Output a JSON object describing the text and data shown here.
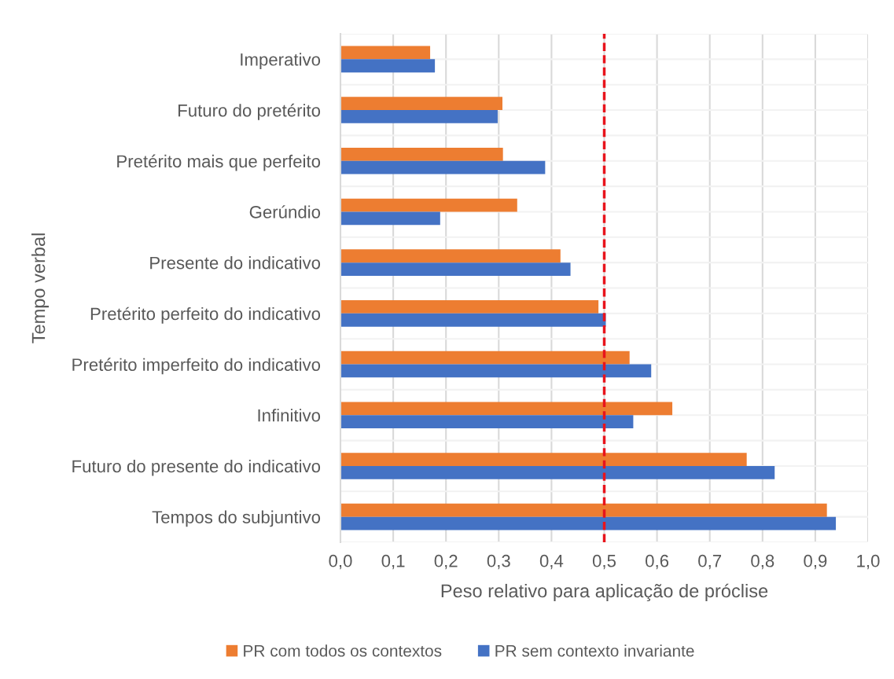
{
  "chart_data": {
    "type": "bar",
    "orientation": "horizontal",
    "xlabel": "Peso relativo para aplicação de próclise",
    "ylabel": "Tempo verbal",
    "categories": [
      "Imperativo",
      "Futuro do pretérito",
      "Pretérito mais que perfeito",
      "Gerúndio",
      "Presente do indicativo",
      "Pretérito perfeito do indicativo",
      "Pretérito imperfeito do indicativo",
      "Infinitivo",
      "Futuro do presente do indicativo",
      "Tempos do subjuntivo"
    ],
    "series": [
      {
        "name": "PR com todos os contextos",
        "color": "#ed7d31",
        "values": [
          0.17,
          0.307,
          0.308,
          0.335,
          0.417,
          0.489,
          0.548,
          0.629,
          0.77,
          0.922
        ]
      },
      {
        "name": "PR sem contexto invariante",
        "color": "#4472c4",
        "values": [
          0.179,
          0.298,
          0.388,
          0.189,
          0.436,
          0.503,
          0.589,
          0.555,
          0.823,
          0.939
        ]
      }
    ],
    "xlim": [
      0,
      1
    ],
    "xticks": [
      {
        "value": 0,
        "label": "0,0"
      },
      {
        "value": 0.1,
        "label": "0,1"
      },
      {
        "value": 0.2,
        "label": "0,2"
      },
      {
        "value": 0.3,
        "label": "0,3"
      },
      {
        "value": 0.4,
        "label": "0,4"
      },
      {
        "value": 0.5,
        "label": "0,5"
      },
      {
        "value": 0.6,
        "label": "0,6"
      },
      {
        "value": 0.7,
        "label": "0,7"
      },
      {
        "value": 0.8,
        "label": "0,8"
      },
      {
        "value": 0.9,
        "label": "0,9"
      },
      {
        "value": 1,
        "label": "1,0"
      }
    ],
    "ref_lines": [
      {
        "axis": "x",
        "value": 0.5,
        "color": "#e8141c",
        "line_style": "dashed"
      }
    ],
    "grid": true,
    "legend": "bottom"
  }
}
